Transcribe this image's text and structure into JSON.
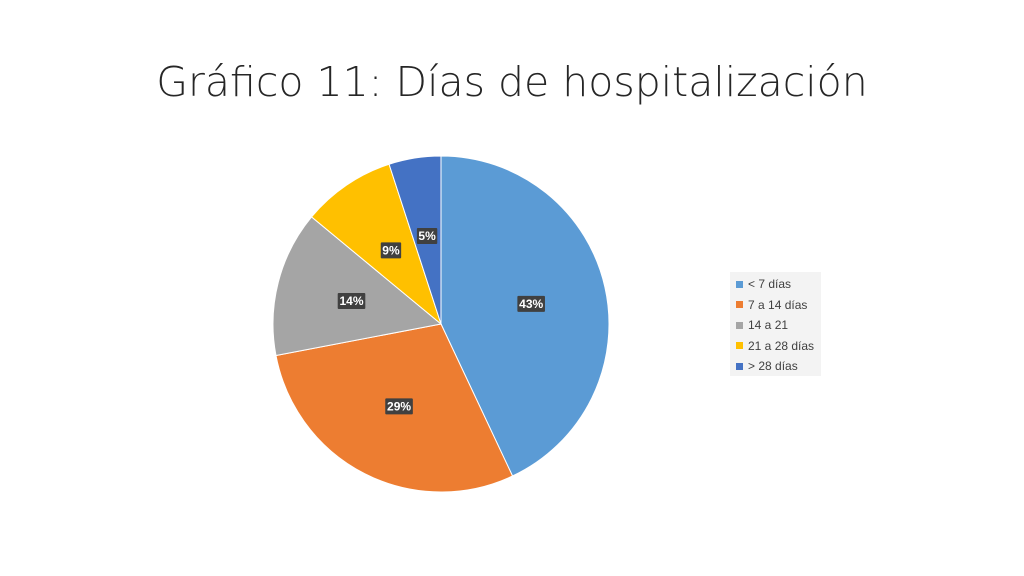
{
  "slide": {
    "title": "Gráfico 11: Días de hospitalización"
  },
  "chart_data": {
    "type": "pie",
    "title": "",
    "categories": [
      "< 7 días",
      "7 a 14 días",
      "14 a 21",
      "21 a 28 días",
      "> 28 días"
    ],
    "values": [
      43,
      29,
      14,
      9,
      5
    ],
    "labels": [
      "43%",
      "29%",
      "14%",
      "9%",
      "5%"
    ],
    "colors": [
      "#5B9BD5",
      "#ED7D31",
      "#A5A5A5",
      "#FFC000",
      "#4472C4"
    ],
    "legend": "right",
    "start": "12 o'clock, clockwise"
  }
}
